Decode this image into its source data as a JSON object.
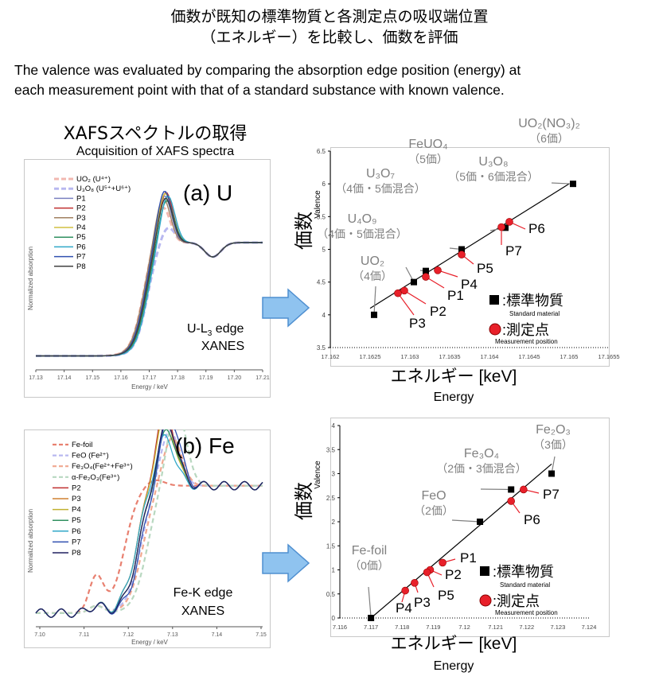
{
  "header": {
    "title_jp_1": "価数が既知の標準物質と各測定点の吸収端位置",
    "title_jp_2": "（エネルギー）を比較し、価数を評価",
    "title_en_1": "The valence was evaluated by comparing the absorption edge position (energy) at",
    "title_en_2": "each measurement point with that of a standard substance with known valence."
  },
  "section": {
    "jp": "XAFSスペクトルの取得",
    "en": "Acquisition of XAFS spectra"
  },
  "colors": {
    "standard": "#000000",
    "measurement": "#e8202a",
    "annotation": "#808080",
    "arrow_fill": "#8fc3ef",
    "arrow_stroke": "#4f8fd0"
  },
  "chart_data": [
    {
      "type": "line",
      "panel_label": "(a) U",
      "edge_line1": "U-L",
      "edge_sub": "3",
      "edge_line1_tail": " edge",
      "edge_line2": "XANES",
      "xlabel": "Energy / keV",
      "ylabel": "Normalized absorption",
      "xlim": [
        17.13,
        17.21
      ],
      "x_ticks": [
        "17.13",
        "17.14",
        "17.15",
        "17.16",
        "17.17",
        "17.18",
        "17.19",
        "17.20",
        "17.21"
      ],
      "legend": [
        "UO₂ (U⁴⁺)",
        "U₃O₈ (U⁵⁺+U⁶⁺)",
        "P1",
        "P2",
        "P3",
        "P4",
        "P5",
        "P6",
        "P7",
        "P8"
      ],
      "series_colors": [
        "#f2b8b0",
        "#b8b8f0",
        "#7a80c0",
        "#c03030",
        "#a08060",
        "#d0c040",
        "#309060",
        "#30a8c8",
        "#3050b0",
        "#404040"
      ]
    },
    {
      "type": "scatter",
      "ylabel_jp": "価数",
      "ylabel_en": "Valence",
      "xlabel_jp": "エネルギー [keV]",
      "xlabel_en": "Energy",
      "xlim": [
        17.162,
        17.1655
      ],
      "ylim": [
        3.5,
        6.5
      ],
      "x_ticks": [
        "17.162",
        "17.1625",
        "17.163",
        "17.1635",
        "17.164",
        "17.1645",
        "17.165",
        "17.1655"
      ],
      "y_ticks": [
        "3.5",
        "4",
        "4.5",
        "5",
        "5.5",
        "6",
        "6.5"
      ],
      "fit_line": [
        [
          17.1625,
          4.1
        ],
        [
          17.165,
          6.0
        ]
      ],
      "standards": [
        {
          "x": 17.16255,
          "y": 4.0
        },
        {
          "x": 17.16305,
          "y": 4.5
        },
        {
          "x": 17.1632,
          "y": 4.67
        },
        {
          "x": 17.16365,
          "y": 5.0
        },
        {
          "x": 17.1642,
          "y": 5.33
        },
        {
          "x": 17.16505,
          "y": 6.0
        }
      ],
      "measurements": [
        {
          "name": "P1",
          "x": 17.1632,
          "y": 4.58
        },
        {
          "name": "P2",
          "x": 17.16293,
          "y": 4.37
        },
        {
          "name": "P3",
          "x": 17.16285,
          "y": 4.33
        },
        {
          "name": "P4",
          "x": 17.16335,
          "y": 4.68
        },
        {
          "name": "P5",
          "x": 17.16365,
          "y": 4.92
        },
        {
          "name": "P6",
          "x": 17.16425,
          "y": 5.42
        },
        {
          "name": "P7",
          "x": 17.16415,
          "y": 5.34
        }
      ],
      "std_annotations": [
        {
          "main": "UO₂",
          "sub": "（4価）"
        },
        {
          "main": "U₄O₉",
          "sub": "（4価・5価混合）"
        },
        {
          "main": "U₃O₇",
          "sub": "（4価・5価混合）"
        },
        {
          "main": "FeUO₄",
          "sub": "（5価）"
        },
        {
          "main": "U₃O₈",
          "sub": "（5価・6価混合）"
        },
        {
          "main": "UO₂(NO₃)₂",
          "sub": "（6価）"
        }
      ],
      "legend_std_jp": ":標準物質",
      "legend_std_en": "Standard material",
      "legend_meas_jp": ":測定点",
      "legend_meas_en": "Measurement position"
    },
    {
      "type": "line",
      "panel_label": "(b) Fe",
      "edge_line1": "Fe-K edge",
      "edge_line2": "XANES",
      "xlabel": "Energy / keV",
      "ylabel": "Normalized absorption",
      "xlim": [
        7.1,
        7.15
      ],
      "x_ticks": [
        "7.10",
        "7.11",
        "7.12",
        "7.13",
        "7.14",
        "7.15"
      ],
      "legend": [
        "Fe-foil",
        "FeO (Fe²⁺)",
        "Fe₃O₄(Fe²⁺+Fe³⁺)",
        "α-Fe₂O₃(Fe³⁺)",
        "P2",
        "P3",
        "P4",
        "P5",
        "P6",
        "P7",
        "P8"
      ],
      "series_colors": [
        "#e88070",
        "#b8b8f0",
        "#f0a890",
        "#b8d8c0",
        "#c03030",
        "#d08030",
        "#c0b030",
        "#309060",
        "#30a8c8",
        "#3050b0",
        "#202060"
      ]
    },
    {
      "type": "scatter",
      "ylabel_jp": "価数",
      "ylabel_en": "Valence",
      "xlabel_jp": "エネルギー [keV]",
      "xlabel_en": "Energy",
      "xlim": [
        7.116,
        7.124
      ],
      "ylim": [
        0,
        4
      ],
      "x_ticks": [
        "7.116",
        "7.117",
        "7.118",
        "7.119",
        "7.12",
        "7.121",
        "7.122",
        "7.123",
        "7.124"
      ],
      "y_ticks": [
        "0",
        "0.5",
        "1",
        "1.5",
        "2",
        "2.5",
        "3",
        "3.5",
        "4"
      ],
      "fit_line": [
        [
          7.117,
          0.0
        ],
        [
          7.1228,
          3.2
        ]
      ],
      "standards": [
        {
          "x": 7.117,
          "y": 0.0
        },
        {
          "x": 7.1205,
          "y": 2.0
        },
        {
          "x": 7.1215,
          "y": 2.67
        },
        {
          "x": 7.1228,
          "y": 3.0
        }
      ],
      "measurements": [
        {
          "name": "P1",
          "x": 7.1193,
          "y": 1.15
        },
        {
          "name": "P2",
          "x": 7.1189,
          "y": 1.0
        },
        {
          "name": "P3",
          "x": 7.1184,
          "y": 0.73
        },
        {
          "name": "P4",
          "x": 7.1181,
          "y": 0.57
        },
        {
          "name": "P5",
          "x": 7.1188,
          "y": 0.95
        },
        {
          "name": "P6",
          "x": 7.1215,
          "y": 2.43
        },
        {
          "name": "P7",
          "x": 7.1219,
          "y": 2.67
        }
      ],
      "std_annotations": [
        {
          "main": "Fe-foil",
          "sub": "（0価）"
        },
        {
          "main": "FeO",
          "sub": "（2価）"
        },
        {
          "main": "Fe₃O₄",
          "sub": "（2価・3価混合）"
        },
        {
          "main": "Fe₂O₃",
          "sub": "（3価）"
        }
      ],
      "legend_std_jp": ":標準物質",
      "legend_std_en": "Standard material",
      "legend_meas_jp": ":測定点",
      "legend_meas_en": "Measurement position"
    }
  ]
}
